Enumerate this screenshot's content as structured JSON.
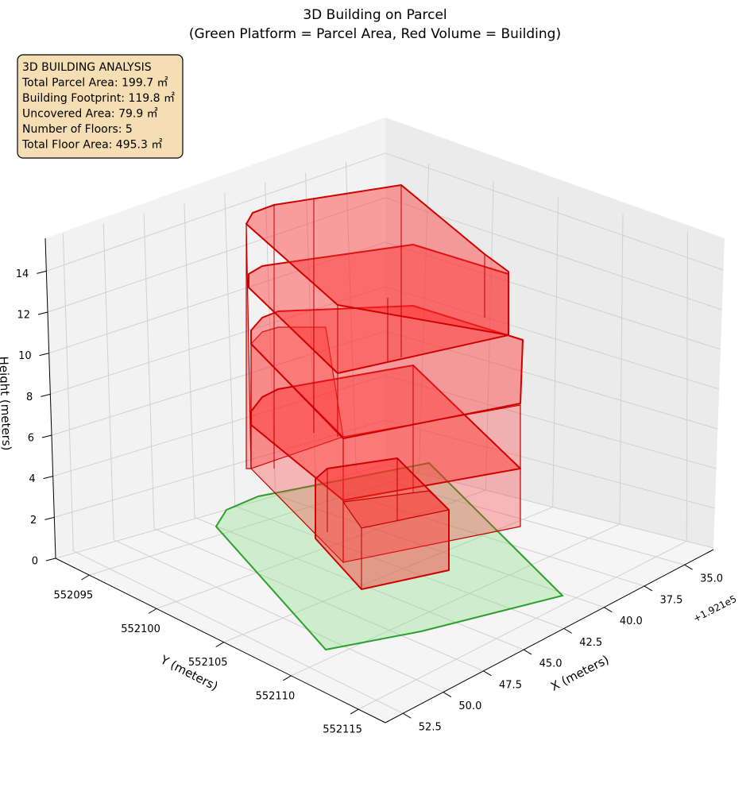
{
  "chart_data": {
    "type": "3d",
    "title": "3D Building on Parcel",
    "subtitle": "(Green Platform = Parcel Area, Red Volume = Building)",
    "xlabel": "X (meters)",
    "ylabel": "Y (meters)",
    "zlabel": "Height (meters)",
    "xoffset": "+1.921e5",
    "xticks": [
      {
        "value": 35,
        "label": "35.0"
      },
      37.5,
      {
        "value": 40,
        "label": "40.0"
      },
      42.5,
      {
        "value": 45,
        "label": "45.0"
      },
      47.5,
      {
        "value": 50,
        "label": "50.0"
      },
      52.5
    ],
    "yticks": [
      552095,
      552100,
      552105,
      552110,
      552115
    ],
    "zticks": [
      0,
      2,
      4,
      6,
      8,
      10,
      12,
      14
    ],
    "annotation_lines": [
      "3D BUILDING ANALYSIS",
      "Total Parcel Area: 199.7 ㎡",
      "Building Footprint: 119.8 ㎡",
      "Uncovered Area: 79.9 ㎡",
      "Number of Floors: 5",
      "Total Floor Area: 495.3 ㎡"
    ],
    "grid": true
  }
}
